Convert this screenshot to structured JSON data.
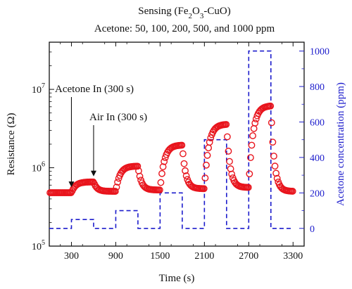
{
  "chart_data": {
    "type": "scatter",
    "title_line1": "Sensing (Fe",
    "title_sub1": "2",
    "title_mid": "O",
    "title_sub2": "3",
    "title_end": "-CuO)",
    "subtitle": "Acetone: 50, 100, 200, 500, and 1000 ppm",
    "xlabel": "Time (s)",
    "ylabel": "Resistance (Ω)",
    "ylabel_right": "Acetone concentration (ppm)",
    "xlim": [
      0,
      3450
    ],
    "ylim": [
      100000,
      40000000
    ],
    "ylim_right": [
      -100,
      1050
    ],
    "y_scale": "log",
    "x_ticks": [
      300,
      900,
      1500,
      2100,
      2700,
      3300
    ],
    "x_tick_labels": [
      "300",
      "900",
      "1500",
      "2100",
      "2700",
      "3300"
    ],
    "y_ticks": [
      {
        "base": "10",
        "exp": "5",
        "value": 100000
      },
      {
        "base": "10",
        "exp": "6",
        "value": 1000000
      },
      {
        "base": "10",
        "exp": "7",
        "value": 10000000
      }
    ],
    "y_right_ticks": [
      0,
      200,
      400,
      600,
      800,
      1000
    ],
    "y_right_tick_labels": [
      "0",
      "200",
      "400",
      "600",
      "800",
      "1000"
    ],
    "annotations": [
      {
        "text": "Acetone In (300 s)",
        "x": 300,
        "y": 600000
      },
      {
        "text": "Air In (300 s)",
        "x": 600,
        "y": 600000
      }
    ],
    "series": [
      {
        "kind": "resistance",
        "color": "#e8141c",
        "pulses": [
          {
            "on": 300,
            "off": 600,
            "base": 480000,
            "peak": 660000
          },
          {
            "on": 900,
            "off": 1200,
            "base": 500000,
            "peak": 1050000
          },
          {
            "on": 1500,
            "off": 1800,
            "base": 520000,
            "peak": 1950000
          },
          {
            "on": 2100,
            "off": 2400,
            "base": 540000,
            "peak": 3600000
          },
          {
            "on": 2700,
            "off": 3000,
            "base": 560000,
            "peak": 6200000
          }
        ],
        "x_start": 0,
        "x_end": 3300,
        "baseline_start": 480000,
        "tail_end": 500000
      },
      {
        "kind": "concentration",
        "color": "#1c1ccc",
        "steps": [
          {
            "t": 0,
            "ppm": 0
          },
          {
            "t": 300,
            "ppm": 50
          },
          {
            "t": 600,
            "ppm": 0
          },
          {
            "t": 900,
            "ppm": 100
          },
          {
            "t": 1200,
            "ppm": 0
          },
          {
            "t": 1500,
            "ppm": 200
          },
          {
            "t": 1800,
            "ppm": 0
          },
          {
            "t": 2100,
            "ppm": 500
          },
          {
            "t": 2400,
            "ppm": 0
          },
          {
            "t": 2700,
            "ppm": 1000
          },
          {
            "t": 3000,
            "ppm": 0
          },
          {
            "t": 3300,
            "ppm": 0
          }
        ]
      }
    ]
  },
  "colors": {
    "resistance": "#e8141c",
    "concentration": "#1c1ccc",
    "axes": "#111111"
  }
}
